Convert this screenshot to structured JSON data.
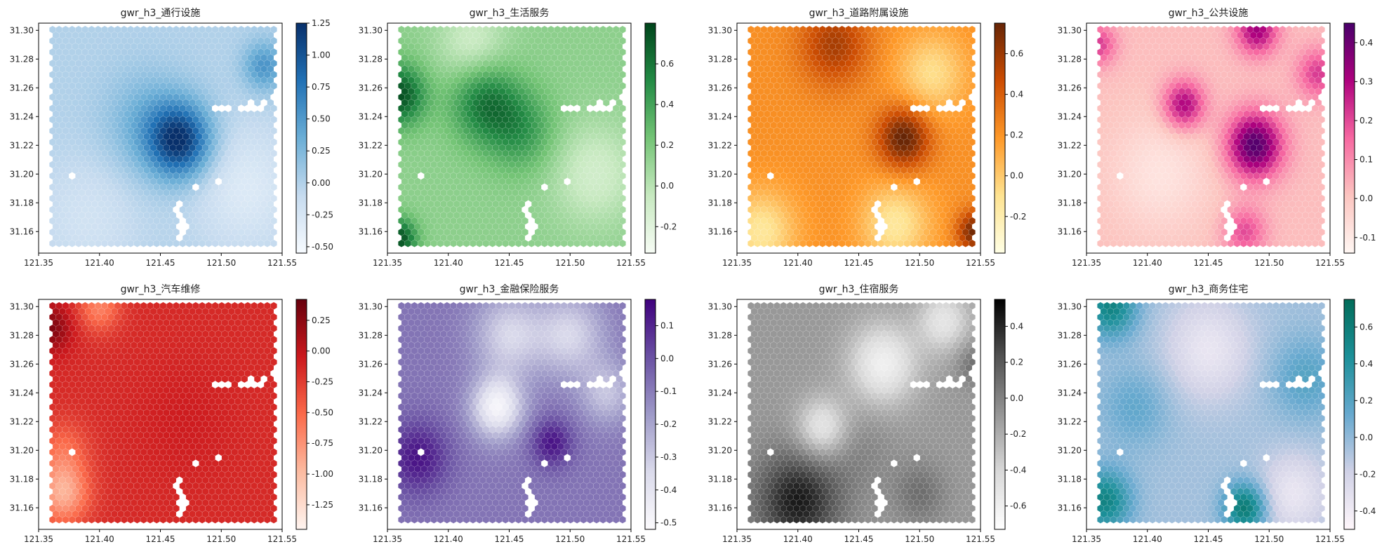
{
  "figure": {
    "x_ticks": [
      "121.35",
      "121.40",
      "121.45",
      "121.50",
      "121.55"
    ],
    "y_ticks": [
      "31.16",
      "31.18",
      "31.20",
      "31.22",
      "31.24",
      "31.26",
      "31.28",
      "31.30"
    ]
  },
  "chart_data": [
    {
      "type": "heatmap",
      "title": "gwr_h3_通行设施",
      "colormap": "Blues",
      "colors": [
        "#f7fbff",
        "#c6dbef",
        "#6baed6",
        "#2171b5",
        "#08306b"
      ],
      "xlim": [
        121.35,
        121.55
      ],
      "ylim": [
        31.145,
        31.305
      ],
      "x_ticks": [
        121.35,
        121.4,
        121.45,
        121.5,
        121.55
      ],
      "y_ticks": [
        31.16,
        31.18,
        31.2,
        31.22,
        31.24,
        31.26,
        31.28,
        31.3
      ],
      "colorbar": {
        "range": [
          -0.55,
          1.25
        ],
        "ticks": [
          -0.5,
          -0.25,
          0.0,
          0.25,
          0.5,
          0.75,
          1.0,
          1.25
        ],
        "tick_labels": [
          "-0.50",
          "-0.25",
          "0.00",
          "0.25",
          "0.50",
          "0.75",
          "1.00",
          "1.25"
        ]
      },
      "background": 0.0,
      "hotspots": [
        {
          "x": 121.466,
          "y": 31.223,
          "sigma": 0.018,
          "value": 1.15
        },
        {
          "x": 121.44,
          "y": 31.235,
          "sigma": 0.025,
          "value": 0.35
        },
        {
          "x": 121.535,
          "y": 31.275,
          "sigma": 0.012,
          "value": 0.55
        },
        {
          "x": 121.39,
          "y": 31.17,
          "sigma": 0.03,
          "value": -0.2
        },
        {
          "x": 121.52,
          "y": 31.19,
          "sigma": 0.03,
          "value": -0.3
        }
      ]
    },
    {
      "type": "heatmap",
      "title": "gwr_h3_生活服务",
      "colormap": "Greens",
      "colors": [
        "#f7fcf5",
        "#c7e9c0",
        "#74c476",
        "#238b45",
        "#00441b"
      ],
      "xlim": [
        121.35,
        121.55
      ],
      "ylim": [
        31.145,
        31.305
      ],
      "x_ticks": [
        121.35,
        121.4,
        121.45,
        121.5,
        121.55
      ],
      "y_ticks": [
        31.16,
        31.18,
        31.2,
        31.22,
        31.24,
        31.26,
        31.28,
        31.3
      ],
      "colorbar": {
        "range": [
          -0.33,
          0.8
        ],
        "ticks": [
          -0.2,
          0.0,
          0.2,
          0.4,
          0.6
        ],
        "tick_labels": [
          "-0.2",
          "0.0",
          "0.2",
          "0.4",
          "0.6"
        ]
      },
      "background": 0.15,
      "hotspots": [
        {
          "x": 121.36,
          "y": 31.255,
          "sigma": 0.015,
          "value": 0.6
        },
        {
          "x": 121.43,
          "y": 31.25,
          "sigma": 0.02,
          "value": 0.45
        },
        {
          "x": 121.36,
          "y": 31.155,
          "sigma": 0.01,
          "value": 0.6
        },
        {
          "x": 121.46,
          "y": 31.23,
          "sigma": 0.02,
          "value": 0.3
        },
        {
          "x": 121.42,
          "y": 31.29,
          "sigma": 0.02,
          "value": -0.25
        },
        {
          "x": 121.52,
          "y": 31.2,
          "sigma": 0.025,
          "value": -0.25
        }
      ]
    },
    {
      "type": "heatmap",
      "title": "gwr_h3_道路附属设施",
      "colormap": "YlOrBr",
      "colors": [
        "#ffffe5",
        "#fee391",
        "#fe9929",
        "#cc4c02",
        "#662506"
      ],
      "xlim": [
        121.35,
        121.55
      ],
      "ylim": [
        31.145,
        31.305
      ],
      "x_ticks": [
        121.35,
        121.4,
        121.45,
        121.5,
        121.55
      ],
      "y_ticks": [
        31.16,
        31.18,
        31.2,
        31.22,
        31.24,
        31.26,
        31.28,
        31.3
      ],
      "colorbar": {
        "range": [
          -0.38,
          0.75
        ],
        "ticks": [
          -0.2,
          0.0,
          0.2,
          0.4,
          0.6
        ],
        "tick_labels": [
          "-0.2",
          "0.0",
          "0.2",
          "0.4",
          "0.6"
        ]
      },
      "background": 0.22,
      "hotspots": [
        {
          "x": 121.487,
          "y": 31.225,
          "sigma": 0.015,
          "value": 0.55
        },
        {
          "x": 121.545,
          "y": 31.16,
          "sigma": 0.01,
          "value": 0.5
        },
        {
          "x": 121.43,
          "y": 31.29,
          "sigma": 0.02,
          "value": 0.35
        },
        {
          "x": 121.37,
          "y": 31.16,
          "sigma": 0.02,
          "value": -0.35
        },
        {
          "x": 121.48,
          "y": 31.165,
          "sigma": 0.02,
          "value": -0.35
        },
        {
          "x": 121.51,
          "y": 31.27,
          "sigma": 0.02,
          "value": -0.3
        }
      ]
    },
    {
      "type": "heatmap",
      "title": "gwr_h3_公共设施",
      "colormap": "RdPu",
      "colors": [
        "#fff7f3",
        "#fcc5c0",
        "#f768a1",
        "#ae017e",
        "#49006a"
      ],
      "xlim": [
        121.35,
        121.55
      ],
      "ylim": [
        31.145,
        31.305
      ],
      "x_ticks": [
        121.35,
        121.4,
        121.45,
        121.5,
        121.55
      ],
      "y_ticks": [
        31.16,
        31.18,
        31.2,
        31.22,
        31.24,
        31.26,
        31.28,
        31.3
      ],
      "colorbar": {
        "range": [
          -0.14,
          0.45
        ],
        "ticks": [
          -0.1,
          0.0,
          0.1,
          0.2,
          0.3,
          0.4
        ],
        "tick_labels": [
          "-0.1",
          "0.0",
          "0.1",
          "0.2",
          "0.3",
          "0.4"
        ]
      },
      "background": 0.02,
      "hotspots": [
        {
          "x": 121.488,
          "y": 31.22,
          "sigma": 0.016,
          "value": 0.42
        },
        {
          "x": 121.43,
          "y": 31.248,
          "sigma": 0.012,
          "value": 0.3
        },
        {
          "x": 121.49,
          "y": 31.3,
          "sigma": 0.012,
          "value": 0.3
        },
        {
          "x": 121.54,
          "y": 31.27,
          "sigma": 0.012,
          "value": 0.2
        },
        {
          "x": 121.36,
          "y": 31.29,
          "sigma": 0.01,
          "value": 0.2
        },
        {
          "x": 121.48,
          "y": 31.16,
          "sigma": 0.012,
          "value": 0.18
        },
        {
          "x": 121.41,
          "y": 31.2,
          "sigma": 0.03,
          "value": -0.1
        }
      ]
    },
    {
      "type": "heatmap",
      "title": "gwr_h3_汽车维修",
      "colormap": "Reds",
      "colors": [
        "#fff5f0",
        "#fcbba1",
        "#fb6a4a",
        "#cb181d",
        "#67000d"
      ],
      "xlim": [
        121.35,
        121.55
      ],
      "ylim": [
        31.145,
        31.305
      ],
      "x_ticks": [
        121.35,
        121.4,
        121.45,
        121.5,
        121.55
      ],
      "y_ticks": [
        31.16,
        31.18,
        31.2,
        31.22,
        31.24,
        31.26,
        31.28,
        31.3
      ],
      "colorbar": {
        "range": [
          -1.45,
          0.42
        ],
        "ticks": [
          -1.25,
          -1.0,
          -0.75,
          -0.5,
          -0.25,
          0.0,
          0.25
        ],
        "tick_labels": [
          "-1.25",
          "-1.00",
          "-0.75",
          "-0.50",
          "-0.25",
          "0.00",
          "0.25"
        ]
      },
      "background": -0.15,
      "hotspots": [
        {
          "x": 121.36,
          "y": 31.285,
          "sigma": 0.012,
          "value": 0.45
        },
        {
          "x": 121.37,
          "y": 31.17,
          "sigma": 0.015,
          "value": -0.75
        },
        {
          "x": 121.37,
          "y": 31.2,
          "sigma": 0.015,
          "value": -0.35
        },
        {
          "x": 121.4,
          "y": 31.3,
          "sigma": 0.012,
          "value": -0.5
        },
        {
          "x": 121.47,
          "y": 31.22,
          "sigma": 0.03,
          "value": 0.08
        }
      ]
    },
    {
      "type": "heatmap",
      "title": "gwr_h3_金融保险服务",
      "colormap": "Purples",
      "colors": [
        "#fcfbfd",
        "#dadaeb",
        "#9e9ac8",
        "#6a51a3",
        "#3f007d"
      ],
      "xlim": [
        121.35,
        121.55
      ],
      "ylim": [
        31.145,
        31.305
      ],
      "x_ticks": [
        121.35,
        121.4,
        121.45,
        121.5,
        121.55
      ],
      "y_ticks": [
        31.16,
        31.18,
        31.2,
        31.22,
        31.24,
        31.26,
        31.28,
        31.3
      ],
      "colorbar": {
        "range": [
          -0.52,
          0.18
        ],
        "ticks": [
          -0.5,
          -0.4,
          -0.3,
          -0.2,
          -0.1,
          0.0,
          0.1
        ],
        "tick_labels": [
          "-0.5",
          "-0.4",
          "-0.3",
          "-0.2",
          "-0.1",
          "0.0",
          "0.1"
        ]
      },
      "background": -0.08,
      "hotspots": [
        {
          "x": 121.375,
          "y": 31.195,
          "sigma": 0.018,
          "value": 0.22
        },
        {
          "x": 121.485,
          "y": 31.205,
          "sigma": 0.012,
          "value": 0.22
        },
        {
          "x": 121.44,
          "y": 31.23,
          "sigma": 0.015,
          "value": -0.4
        },
        {
          "x": 121.45,
          "y": 31.28,
          "sigma": 0.02,
          "value": -0.25
        },
        {
          "x": 121.5,
          "y": 31.28,
          "sigma": 0.02,
          "value": -0.25
        },
        {
          "x": 121.53,
          "y": 31.24,
          "sigma": 0.015,
          "value": -0.2
        }
      ]
    },
    {
      "type": "heatmap",
      "title": "gwr_h3_住宿服务",
      "colormap": "Greys",
      "colors": [
        "#ffffff",
        "#d9d9d9",
        "#969696",
        "#525252",
        "#000000"
      ],
      "xlim": [
        121.35,
        121.55
      ],
      "ylim": [
        31.145,
        31.305
      ],
      "x_ticks": [
        121.35,
        121.4,
        121.45,
        121.5,
        121.55
      ],
      "y_ticks": [
        31.16,
        31.18,
        31.2,
        31.22,
        31.24,
        31.26,
        31.28,
        31.3
      ],
      "colorbar": {
        "range": [
          -0.73,
          0.55
        ],
        "ticks": [
          -0.6,
          -0.4,
          -0.2,
          0.0,
          0.2,
          0.4
        ],
        "tick_labels": [
          "-0.6",
          "-0.4",
          "-0.2",
          "0.0",
          "0.2",
          "0.4"
        ]
      },
      "background": -0.1,
      "hotspots": [
        {
          "x": 121.4,
          "y": 31.165,
          "sigma": 0.025,
          "value": 0.55
        },
        {
          "x": 121.5,
          "y": 31.17,
          "sigma": 0.015,
          "value": 0.2
        },
        {
          "x": 121.545,
          "y": 31.26,
          "sigma": 0.01,
          "value": 0.2
        },
        {
          "x": 121.47,
          "y": 31.26,
          "sigma": 0.02,
          "value": -0.5
        },
        {
          "x": 121.42,
          "y": 31.215,
          "sigma": 0.015,
          "value": -0.45
        },
        {
          "x": 121.52,
          "y": 31.29,
          "sigma": 0.015,
          "value": -0.4
        },
        {
          "x": 121.45,
          "y": 31.2,
          "sigma": 0.02,
          "value": 0.1
        }
      ]
    },
    {
      "type": "heatmap",
      "title": "gwr_h3_商务住宅",
      "colormap": "PuBuGn",
      "colors": [
        "#fff7fb",
        "#d0d1e6",
        "#67a9cf",
        "#1c9099",
        "#016c59"
      ],
      "xlim": [
        121.35,
        121.55
      ],
      "ylim": [
        31.145,
        31.305
      ],
      "x_ticks": [
        121.35,
        121.4,
        121.45,
        121.5,
        121.55
      ],
      "y_ticks": [
        31.16,
        31.18,
        31.2,
        31.22,
        31.24,
        31.26,
        31.28,
        31.3
      ],
      "colorbar": {
        "range": [
          -0.5,
          0.75
        ],
        "ticks": [
          -0.4,
          -0.2,
          0.0,
          0.2,
          0.4,
          0.6
        ],
        "tick_labels": [
          "-0.4",
          "-0.2",
          "0.0",
          "0.2",
          "0.4",
          "0.6"
        ]
      },
      "background": -0.05,
      "hotspots": [
        {
          "x": 121.48,
          "y": 31.16,
          "sigma": 0.012,
          "value": 0.7
        },
        {
          "x": 121.365,
          "y": 31.165,
          "sigma": 0.015,
          "value": 0.6
        },
        {
          "x": 121.37,
          "y": 31.3,
          "sigma": 0.015,
          "value": 0.6
        },
        {
          "x": 121.53,
          "y": 31.25,
          "sigma": 0.02,
          "value": 0.25
        },
        {
          "x": 121.39,
          "y": 31.23,
          "sigma": 0.02,
          "value": 0.2
        },
        {
          "x": 121.45,
          "y": 31.27,
          "sigma": 0.025,
          "value": -0.3
        },
        {
          "x": 121.52,
          "y": 31.17,
          "sigma": 0.02,
          "value": -0.3
        }
      ]
    }
  ]
}
